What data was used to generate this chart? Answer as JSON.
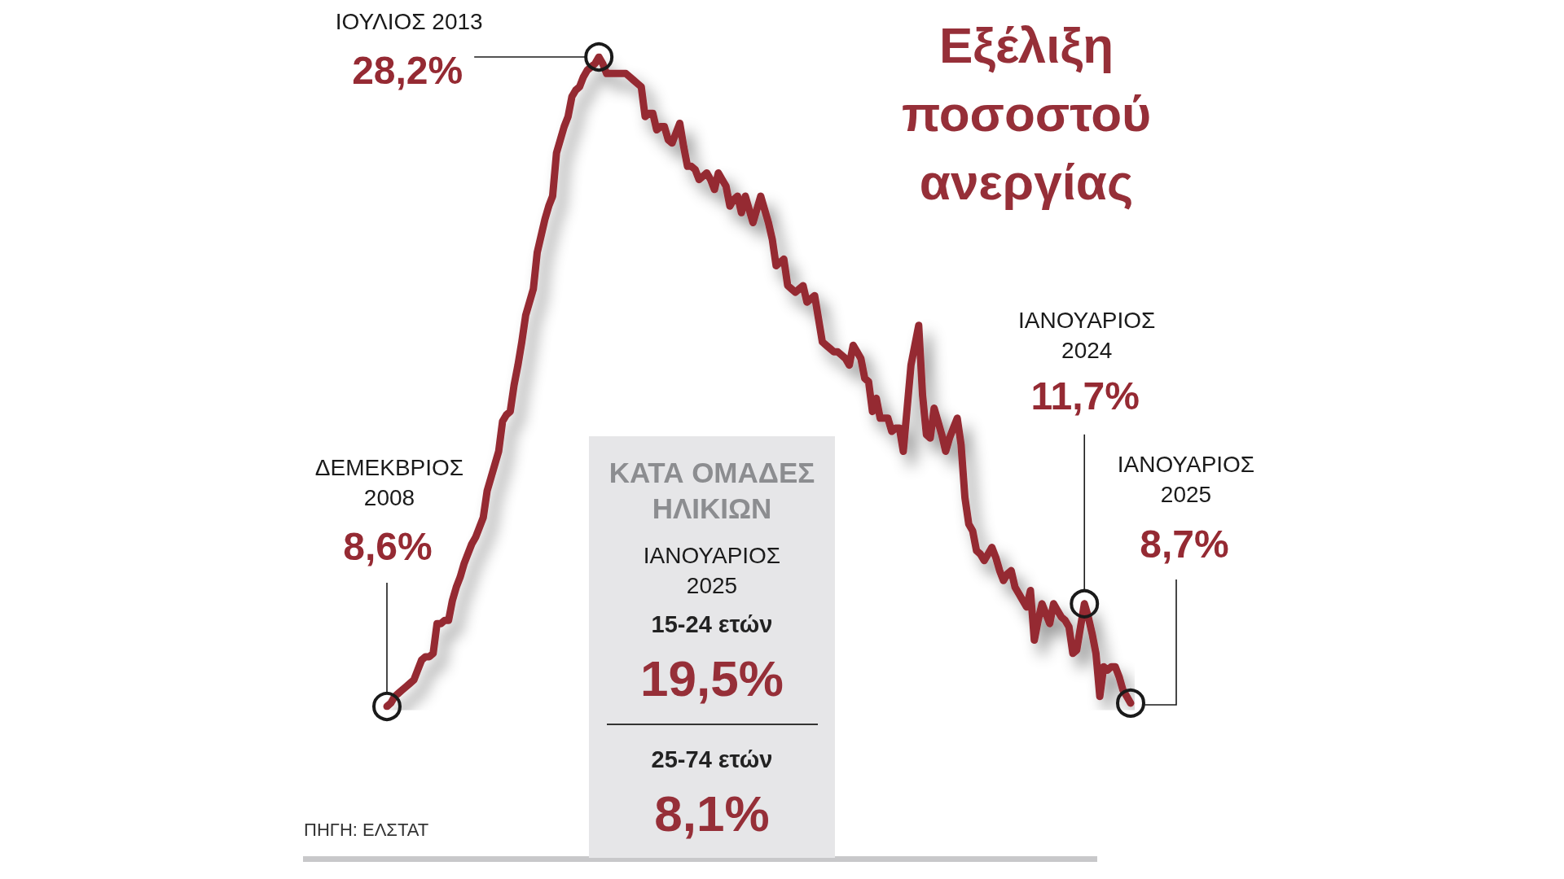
{
  "chart_data": [
    {
      "type": "line",
      "title": "Εξέλιξη ποσοστού ανεργίας",
      "categories": [
        null,
        null,
        null,
        null,
        null,
        null,
        null,
        null,
        null,
        null,
        null,
        null,
        null,
        null,
        null,
        null,
        null,
        null,
        null,
        null,
        null,
        null,
        null,
        null,
        null,
        null,
        null,
        null,
        null,
        null,
        null,
        null,
        null,
        null,
        null,
        null,
        null,
        null,
        null,
        null,
        null,
        null,
        null,
        null,
        null,
        null,
        null,
        null,
        null,
        null,
        null,
        null,
        null,
        null,
        null,
        null,
        null,
        null,
        null,
        null,
        null,
        null,
        null,
        null,
        null,
        null,
        null,
        null,
        null,
        null,
        null,
        null,
        null,
        null,
        null,
        null,
        null,
        null,
        null,
        null,
        null,
        null,
        null,
        null,
        null,
        null,
        null,
        null,
        null,
        null,
        null,
        null,
        null,
        null,
        null,
        null,
        null,
        null,
        null,
        null,
        null,
        null,
        null,
        null,
        null,
        null,
        null,
        null,
        null,
        null,
        null,
        null,
        null,
        null,
        null,
        null,
        null,
        null,
        null,
        null,
        null,
        null,
        null,
        null,
        null,
        null,
        null,
        null,
        null,
        null,
        null,
        null,
        null,
        null,
        null,
        null,
        null,
        null,
        null,
        null,
        null,
        null,
        null,
        null,
        null,
        null,
        null,
        null,
        null,
        null,
        null,
        null,
        null,
        null,
        null,
        null,
        null,
        null,
        null,
        null,
        null,
        null,
        null,
        null,
        null,
        null,
        null,
        null,
        null,
        null,
        null,
        null,
        null,
        null,
        null,
        null,
        null,
        null,
        null,
        null,
        null,
        null,
        null,
        null,
        null,
        null,
        null,
        null,
        null,
        null,
        null,
        null,
        null,
        null
      ],
      "series": [
        {
          "color": "#952a33",
          "values": [
            8.6,
            8.7,
            8.9,
            9.0,
            9.1,
            9.2,
            9.3,
            9.4,
            9.7,
            10.0,
            10.1,
            10.1,
            10.2,
            11.1,
            11.1,
            11.2,
            11.2,
            11.8,
            12.2,
            12.5,
            12.9,
            13.2,
            13.5,
            13.7,
            14.0,
            14.3,
            15.1,
            15.5,
            15.9,
            16.3,
            17.2,
            17.4,
            17.5,
            18.3,
            18.9,
            19.6,
            20.4,
            20.8,
            21.2,
            22.3,
            22.8,
            23.3,
            23.7,
            24.0,
            25.3,
            25.7,
            26.1,
            26.4,
            27.0,
            27.2,
            27.3,
            27.6,
            27.8,
            27.9,
            28.0,
            28.2,
            28.0,
            27.7,
            27.7,
            27.7,
            27.7,
            27.7,
            27.7,
            27.6,
            27.5,
            27.4,
            27.3,
            26.4,
            26.5,
            26.5,
            26.0,
            26.1,
            26.1,
            25.7,
            25.6,
            25.9,
            26.2,
            25.5,
            24.9,
            24.9,
            24.8,
            24.5,
            24.6,
            24.7,
            24.5,
            24.2,
            24.7,
            24.5,
            24.3,
            23.7,
            23.9,
            24.0,
            23.5,
            24.0,
            23.6,
            23.2,
            23.6,
            24.0,
            23.6,
            23.2,
            22.7,
            21.9,
            22.0,
            22.1,
            21.3,
            21.2,
            21.1,
            21.2,
            21.3,
            20.8,
            20.9,
            21.0,
            20.3,
            19.6,
            19.5,
            19.4,
            19.3,
            19.3,
            19.2,
            19.1,
            18.9,
            19.5,
            19.3,
            19.1,
            18.5,
            18.4,
            17.5,
            17.9,
            17.3,
            17.3,
            17.3,
            16.9,
            17.0,
            17.0,
            16.3,
            17.6,
            18.9,
            19.5,
            20.1,
            18.0,
            16.8,
            16.7,
            17.6,
            17.2,
            16.8,
            16.3,
            16.7,
            17.0,
            17.3,
            16.5,
            14.9,
            14.1,
            13.9,
            13.3,
            13.2,
            13.0,
            13.2,
            13.4,
            13.1,
            12.7,
            12.4,
            12.6,
            12.7,
            12.2,
            12.0,
            11.8,
            11.6,
            12.1,
            10.6,
            11.2,
            11.7,
            11.4,
            11.1,
            11.7,
            11.5,
            11.3,
            11.2,
            11.0,
            10.2,
            10.3,
            11.0,
            11.7,
            11.3,
            10.8,
            10.2,
            8.9,
            9.8,
            9.7,
            9.8,
            9.8,
            9.5,
            9.1,
            8.9,
            8.7
          ],
          "value_labels": [
            "8,6%",
            null,
            null,
            null,
            null,
            null,
            null,
            null,
            null,
            null,
            null,
            null,
            null,
            null,
            null,
            null,
            null,
            null,
            null,
            null,
            null,
            null,
            null,
            null,
            null,
            null,
            null,
            null,
            null,
            null,
            null,
            null,
            null,
            null,
            null,
            null,
            null,
            null,
            null,
            null,
            null,
            null,
            null,
            null,
            null,
            null,
            null,
            null,
            null,
            null,
            null,
            null,
            null,
            null,
            null,
            "28,2%",
            null,
            null,
            null,
            null,
            null,
            null,
            null,
            null,
            null,
            null,
            null,
            null,
            null,
            null,
            null,
            null,
            null,
            null,
            null,
            null,
            null,
            null,
            null,
            null,
            null,
            null,
            null,
            null,
            null,
            null,
            null,
            null,
            null,
            null,
            null,
            null,
            null,
            null,
            null,
            null,
            null,
            null,
            null,
            null,
            null,
            null,
            null,
            null,
            null,
            null,
            null,
            null,
            null,
            null,
            null,
            null,
            null,
            null,
            null,
            null,
            null,
            null,
            null,
            null,
            null,
            null,
            null,
            null,
            null,
            null,
            null,
            null,
            null,
            null,
            null,
            null,
            null,
            null,
            null,
            null,
            null,
            null,
            null,
            null,
            null,
            null,
            null,
            null,
            null,
            null,
            null,
            null,
            null,
            null,
            null,
            null,
            null,
            null,
            null,
            null,
            null,
            null,
            null,
            null,
            null,
            null,
            null,
            null,
            null,
            null,
            null,
            null,
            null,
            null,
            null,
            null,
            null,
            null,
            null,
            null,
            null,
            null,
            null,
            null,
            null,
            "11,7%",
            null,
            null,
            null,
            null,
            null,
            null,
            null,
            null,
            null,
            null,
            null,
            "8,7%"
          ]
        }
      ],
      "annotations": [
        "ΔΕΜΕΚΒΡΙΟΣ 2008",
        "ΙΟΥΛΙΟΣ 2013",
        "ΙΑΝΟΥΑΡΙΟΣ 2024",
        "ΙΑΝΟΥΑΡΙΟΣ 2025",
        "ΠΗΓΗ: ΕΛΣΤΑΤ"
      ],
      "tick_labels": false
    },
    {
      "type": "other",
      "title": "ΚΑΤΑ ΟΜΑΔΕΣ ΗΛΙΚΙΩΝ",
      "subtitle": "ΙΑΝΟΥΑΡΙΟΣ 2025",
      "annotations": [
        "15-24 ετών",
        "19,5%",
        "25-74 ετών",
        "8,1%"
      ]
    }
  ]
}
